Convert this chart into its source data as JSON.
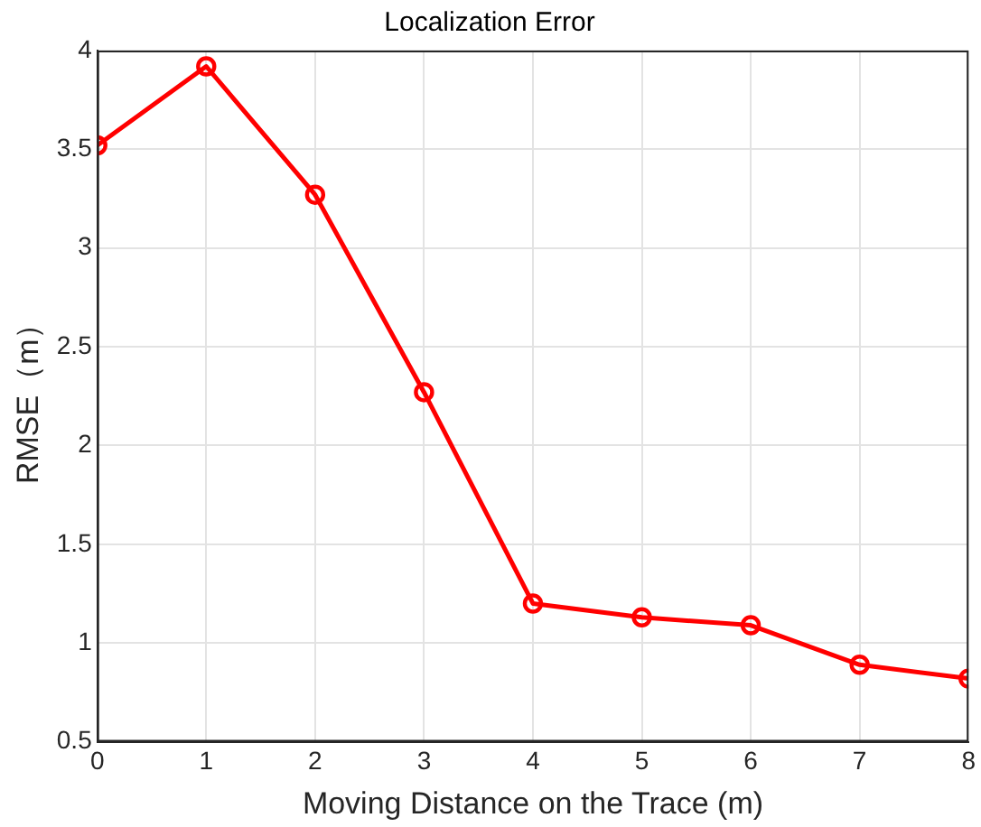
{
  "chart_data": {
    "type": "line",
    "title": "Localization Error",
    "xlabel": "Moving Distance on the Trace (m)",
    "ylabel": "RMSE（m）",
    "x": [
      0,
      1,
      2,
      3,
      4,
      5,
      6,
      7,
      8
    ],
    "series": [
      {
        "color": "#ff0000",
        "values": [
          3.52,
          3.92,
          3.27,
          2.27,
          1.2,
          1.13,
          1.09,
          0.89,
          0.82
        ]
      }
    ],
    "xlim": [
      0,
      8
    ],
    "xticks": [
      0,
      1,
      2,
      3,
      4,
      5,
      6,
      7,
      8
    ],
    "ylim": [
      0.5,
      4
    ],
    "yticks": [
      0.5,
      1,
      1.5,
      2,
      2.5,
      3,
      3.5,
      4
    ],
    "grid": true,
    "legend": false,
    "marker": "circle",
    "line_style": "solid"
  }
}
